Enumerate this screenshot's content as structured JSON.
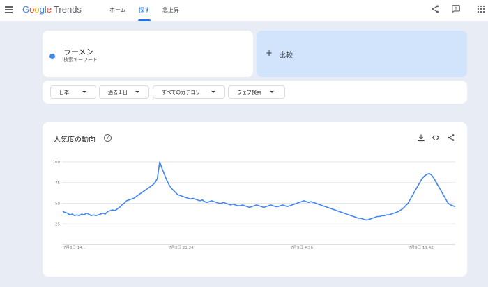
{
  "topbar": {
    "logo_google": [
      "G",
      "o",
      "o",
      "g",
      "l",
      "e"
    ],
    "logo_trends": "Trends",
    "nav": [
      {
        "label": "ホーム",
        "active": false
      },
      {
        "label": "探す",
        "active": true
      },
      {
        "label": "急上昇",
        "active": false
      }
    ]
  },
  "search": {
    "term": "ラーメン",
    "term_type": "検索キーワード",
    "term_color": "#4285f4",
    "compare_label": "比較"
  },
  "filters": [
    {
      "label": "日本"
    },
    {
      "label": "過去１日"
    },
    {
      "label": "すべてのカテゴリ"
    },
    {
      "label": "ウェブ検索"
    }
  ],
  "interest": {
    "title": "人気度の動向"
  },
  "chart_data": {
    "type": "line",
    "title": "",
    "xlabel": "",
    "ylabel": "",
    "ylim": [
      0,
      100
    ],
    "yticks": [
      25,
      50,
      75,
      100
    ],
    "xtick_labels": [
      "7月8日 14...",
      "7月8日 21:24",
      "7月9日 4:36",
      "7月9日 11:48"
    ],
    "grid": true,
    "series": [
      {
        "name": "ラーメン",
        "color": "#4285f4",
        "values": [
          40,
          39,
          38,
          36,
          37,
          35,
          36,
          35,
          37,
          36,
          38,
          37,
          35,
          36,
          35,
          36,
          37,
          38,
          37,
          40,
          41,
          42,
          41,
          43,
          45,
          48,
          50,
          53,
          54,
          55,
          56,
          58,
          60,
          62,
          64,
          66,
          68,
          70,
          72,
          75,
          80,
          100,
          92,
          85,
          78,
          72,
          68,
          65,
          62,
          60,
          59,
          58,
          57,
          56,
          55,
          56,
          55,
          54,
          53,
          54,
          52,
          51,
          52,
          53,
          52,
          51,
          50,
          50,
          51,
          50,
          49,
          48,
          49,
          48,
          47,
          47,
          48,
          47,
          46,
          45,
          46,
          47,
          48,
          47,
          46,
          45,
          46,
          47,
          48,
          47,
          46,
          46,
          47,
          48,
          47,
          46,
          47,
          48,
          49,
          50,
          51,
          52,
          53,
          52,
          51,
          52,
          51,
          50,
          49,
          48,
          47,
          46,
          45,
          44,
          43,
          42,
          41,
          40,
          39,
          38,
          37,
          36,
          35,
          34,
          33,
          32,
          32,
          31,
          30,
          30,
          31,
          32,
          33,
          34,
          34,
          35,
          35,
          36,
          36,
          37,
          38,
          39,
          40,
          42,
          44,
          47,
          50,
          55,
          60,
          65,
          70,
          75,
          80,
          83,
          85,
          86,
          84,
          80,
          75,
          70,
          65,
          60,
          55,
          50,
          48,
          47,
          46
        ]
      }
    ]
  }
}
